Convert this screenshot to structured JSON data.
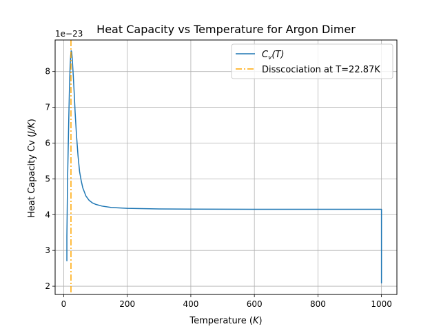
{
  "chart_data": {
    "type": "line",
    "title": "Heat Capacity vs Temperature for Argon Dimer",
    "xlabel": {
      "text": "Temperature (",
      "italic": "K",
      "suffix": ")"
    },
    "ylabel": {
      "text": "Heat Capacity Cv (",
      "italic": "J/K",
      "suffix": ")"
    },
    "y_offset_text": "1e−23",
    "xlim": [
      -27.0,
      1048.5
    ],
    "ylim": [
      1.77,
      8.88
    ],
    "x_ticks": [
      0,
      200,
      400,
      600,
      800,
      1000
    ],
    "y_ticks": [
      2,
      3,
      4,
      5,
      6,
      7,
      8
    ],
    "grid": true,
    "legend_position": "top-right",
    "series": [
      {
        "name": "C_v(T)",
        "name_parts": {
          "main": "C",
          "sub": "v",
          "rest": "(T)"
        },
        "color": "#1f77b4",
        "style": "solid",
        "points": [
          [
            10,
            2.7
          ],
          [
            10,
            3.4
          ],
          [
            11,
            4.1
          ],
          [
            12,
            4.9
          ],
          [
            14,
            5.8
          ],
          [
            16,
            6.7
          ],
          [
            18,
            7.5
          ],
          [
            20,
            8.1
          ],
          [
            22,
            8.45
          ],
          [
            23.5,
            8.58
          ],
          [
            25,
            8.55
          ],
          [
            27,
            8.35
          ],
          [
            30,
            7.9
          ],
          [
            33,
            7.4
          ],
          [
            36,
            6.85
          ],
          [
            40,
            6.25
          ],
          [
            45,
            5.65
          ],
          [
            50,
            5.2
          ],
          [
            55,
            4.95
          ],
          [
            60,
            4.75
          ],
          [
            70,
            4.52
          ],
          [
            80,
            4.4
          ],
          [
            90,
            4.33
          ],
          [
            100,
            4.29
          ],
          [
            120,
            4.24
          ],
          [
            150,
            4.2
          ],
          [
            200,
            4.175
          ],
          [
            300,
            4.16
          ],
          [
            400,
            4.155
          ],
          [
            600,
            4.15
          ],
          [
            800,
            4.15
          ],
          [
            1000,
            4.15
          ],
          [
            1000,
            2.08
          ]
        ]
      },
      {
        "name": "Disscociation at T=22.87K",
        "color": "#ffa500",
        "style": "dashdot",
        "vline_x": 22.87
      }
    ]
  }
}
